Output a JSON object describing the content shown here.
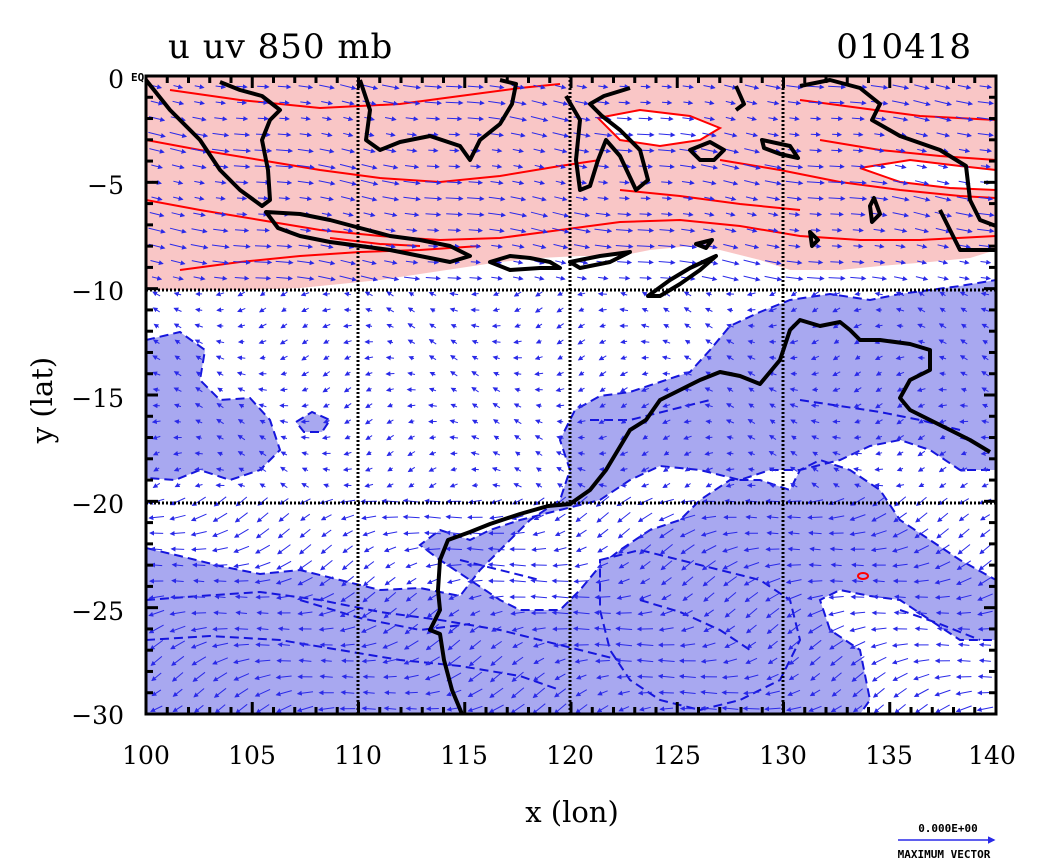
{
  "map": {
    "title_left": "u uv 850 mb",
    "title_right": "010418",
    "eq_label": "EQ",
    "xlabel": "x (lon)",
    "ylabel": "y (lat)",
    "xlim": [
      100,
      140
    ],
    "ylim": [
      -30,
      0
    ],
    "x_ticks": [
      100,
      105,
      110,
      115,
      120,
      125,
      130,
      135,
      140
    ],
    "x_tick_labels": [
      "100",
      "105",
      "110",
      "115",
      "120",
      "125",
      "130",
      "135",
      "140"
    ],
    "y_ticks": [
      0,
      -5,
      -10,
      -15,
      -20,
      -25,
      -30
    ],
    "y_tick_labels": [
      "0",
      "−5",
      "−10",
      "−15",
      "−20",
      "−25",
      "−30"
    ],
    "grid_lons": [
      110,
      120,
      130
    ],
    "grid_lats": [
      -10,
      -20
    ],
    "ref_vector_value": "0.000E+00",
    "ref_vector_label": "MAXIMUM VECTOR",
    "colors": {
      "positive_fill": "#f9c6c6",
      "positive_contour": "#ff0000",
      "negative_fill": "#a8a8f0",
      "negative_contour": "#1515dd",
      "vector": "#2a2ae8",
      "coast": "#000000",
      "grid": "#000000"
    }
  }
}
